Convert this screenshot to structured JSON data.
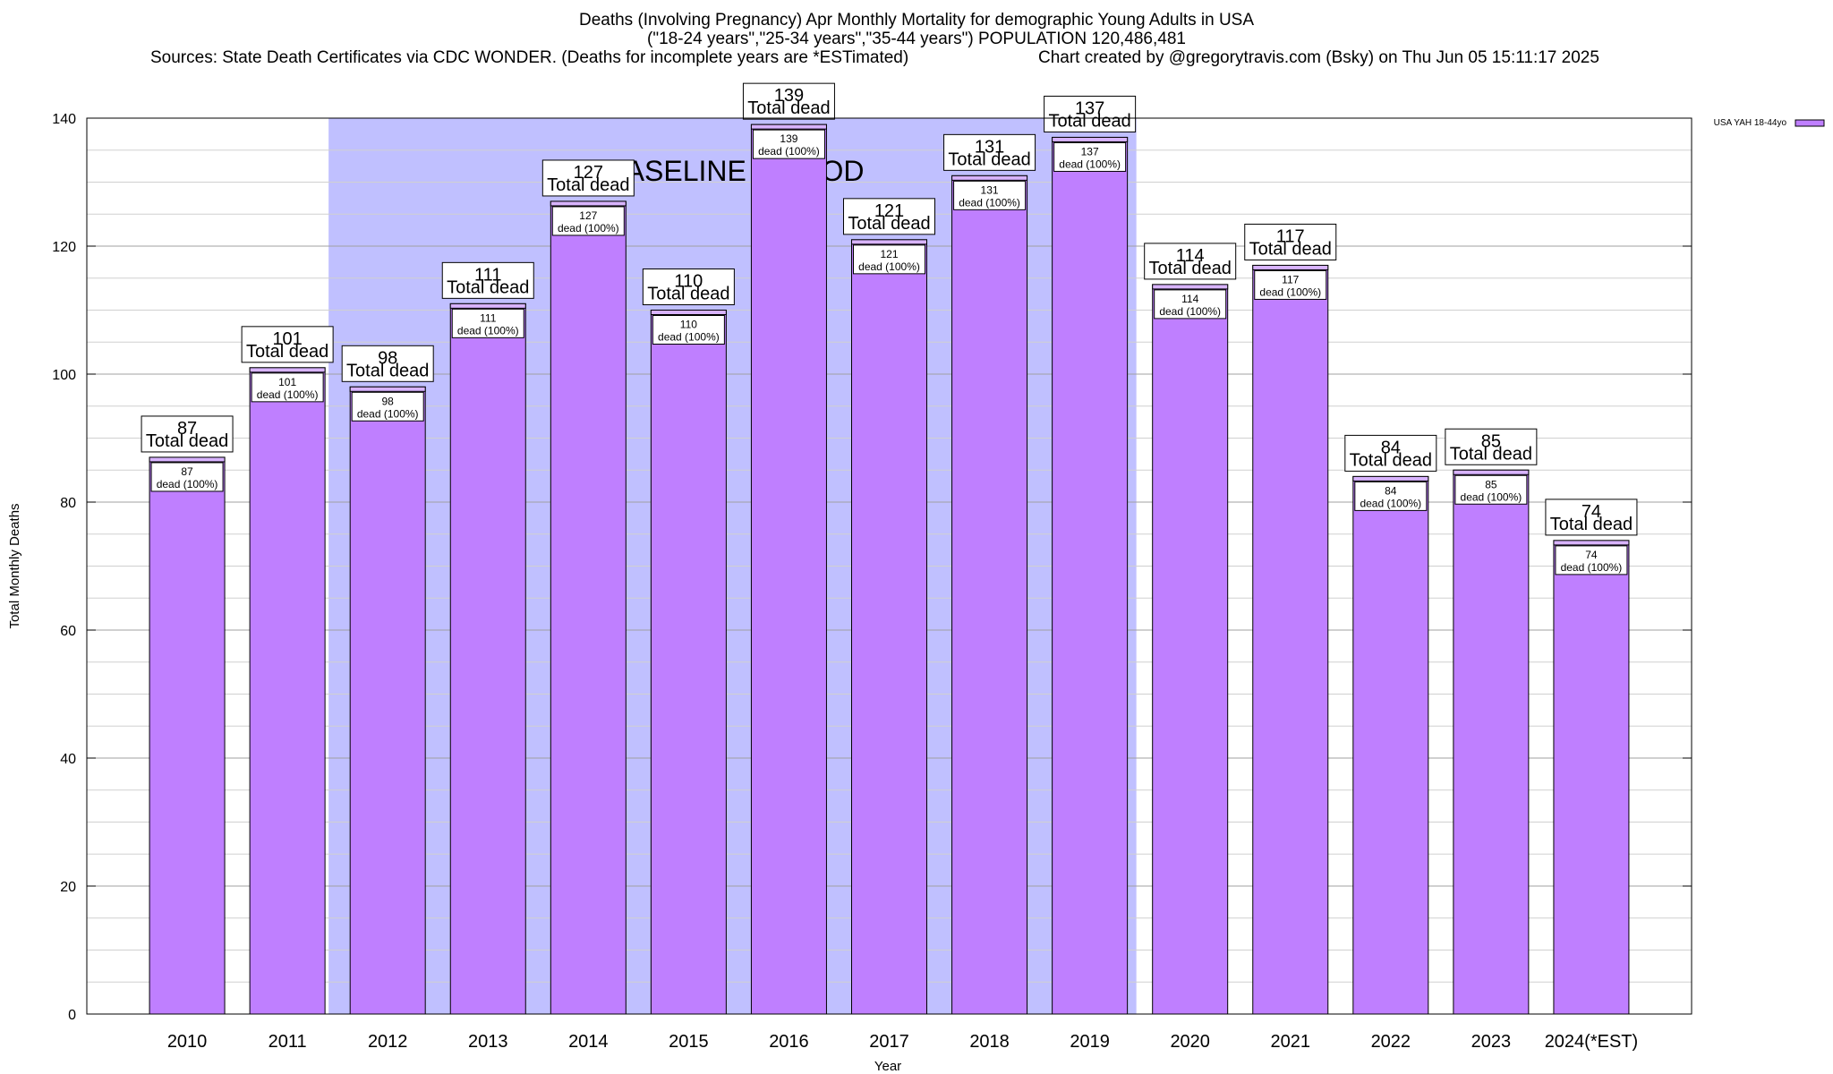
{
  "header": {
    "title": "Deaths (Involving Pregnancy) Apr Monthly Mortality for demographic Young Adults in USA",
    "subtitle": "(\"18-24 years\",\"25-34 years\",\"35-44 years\") POPULATION 120,486,481",
    "sources": "Sources: State Death Certificates via CDC WONDER. (Deaths for incomplete years are *ESTimated)",
    "credit": "Chart created by @gregorytravis.com (Bsky) on Thu Jun 05 15:11:17 2025"
  },
  "chart_data": {
    "type": "bar",
    "title": "Deaths (Involving Pregnancy) Apr Monthly Mortality for demographic Young Adults in USA",
    "xlabel": "Year",
    "ylabel": "Total Monthly Deaths",
    "ylim": [
      0,
      140
    ],
    "yticks": [
      0,
      20,
      40,
      60,
      80,
      100,
      120,
      140
    ],
    "grid": true,
    "legend_position": "top-right",
    "categories": [
      "2010",
      "2011",
      "2012",
      "2013",
      "2014",
      "2015",
      "2016",
      "2017",
      "2018",
      "2019",
      "2020",
      "2021",
      "2022",
      "2023",
      "2024(*EST)"
    ],
    "series": [
      {
        "name": "USA YAH 18-44yo",
        "values": [
          87,
          101,
          98,
          111,
          127,
          110,
          139,
          121,
          131,
          137,
          114,
          117,
          84,
          85,
          74
        ]
      }
    ],
    "top_label_suffix": "Total dead",
    "inner_labels": [
      "87\ndead (100%)",
      "101\ndead (100%)",
      "98\ndead (100%)",
      "111\ndead (100%)",
      "127\ndead (100%)",
      "110\ndead (100%)",
      "139\ndead (100%)",
      "121\ndead (100%)",
      "131\ndead (100%)",
      "137\ndead (100%)",
      "114\ndead (100%)",
      "117\ndead (100%)",
      "84\ndead (100%)",
      "85\ndead (100%)",
      "74\ndead (100%)"
    ],
    "baseline": {
      "label": "BASELINE PERIOD",
      "start_category": "2012",
      "end_category": "2019",
      "color": "#c0c0ff"
    },
    "colors": {
      "bar_fill": "#bf7fff",
      "bar_top": "#d8b3ff",
      "bar_stroke": "#000000"
    }
  }
}
